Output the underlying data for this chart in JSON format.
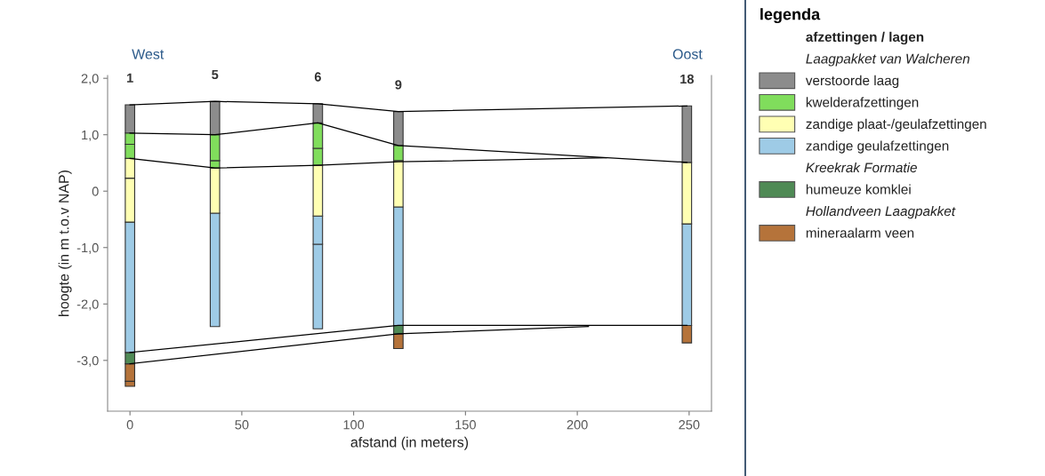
{
  "chart_data": {
    "type": "bar",
    "xlabel": "afstand (in meters)",
    "ylabel": "hoogte (in m t.o.v NAP)",
    "legend_title": "legenda",
    "x": [
      0,
      38,
      84,
      120,
      249
    ],
    "series": [
      {
        "name": "mineraalarm veen",
        "color": "#b5733a",
        "base": [
          -3.46,
          null,
          null,
          -2.79,
          -2.69
        ],
        "values": [
          0.09,
          null,
          null,
          0.26,
          0.31
        ]
      },
      {
        "color": "#b5733a",
        "base": [
          -3.37,
          null,
          null,
          null,
          null
        ],
        "values": [
          0.31,
          null,
          null,
          null,
          null
        ]
      },
      {
        "name": "humeuze komklei",
        "color": "#4f8a55",
        "base": [
          -3.06,
          null,
          null,
          -2.53,
          null
        ],
        "values": [
          0.2,
          null,
          null,
          0.15,
          null
        ]
      },
      {
        "color": "#9ecbe6",
        "base": [
          null,
          null,
          -2.44,
          null,
          null
        ],
        "values": [
          null,
          null,
          1.5,
          null,
          null
        ]
      },
      {
        "name": "zandige geulafzettingen",
        "color": "#9ecbe6",
        "base": [
          -2.86,
          -2.4,
          -0.94,
          -2.38,
          -2.38
        ],
        "values": [
          2.31,
          2.01,
          0.5,
          2.1,
          1.8
        ]
      },
      {
        "color": "#ffffb3",
        "base": [
          -0.55,
          null,
          null,
          null,
          null
        ],
        "values": [
          0.78,
          null,
          null,
          null,
          null
        ]
      },
      {
        "name": "zandige plaat-/geulafzettingen",
        "color": "#ffffb3",
        "base": [
          0.23,
          -0.39,
          -0.44,
          -0.28,
          -0.58
        ],
        "values": [
          0.35,
          0.8,
          0.9,
          0.82,
          1.09
        ]
      },
      {
        "color": "#80dd5c",
        "base": [
          0.58,
          0.41,
          0.46,
          null,
          null
        ],
        "values": [
          0.25,
          0.13,
          0.3,
          null,
          null
        ]
      },
      {
        "name": "kwelderafzettingen",
        "color": "#80dd5c",
        "base": [
          0.83,
          0.54,
          0.76,
          0.54,
          null
        ],
        "values": [
          0.2,
          0.46,
          0.45,
          0.27,
          null
        ]
      },
      {
        "name": "verstoorde laag",
        "color": "#8c8c8c",
        "base": [
          1.03,
          1.0,
          1.21,
          0.81,
          0.51
        ],
        "values": [
          0.5,
          0.59,
          0.34,
          0.6,
          1.0
        ]
      },
      {
        "type": "line",
        "color": "#000000",
        "x": [
          0,
          38,
          84,
          120,
          249
        ],
        "values": [
          1.53,
          1.59,
          1.55,
          1.41,
          1.51
        ]
      },
      {
        "type": "line",
        "color": "#000000",
        "x": [
          0,
          38,
          84,
          120,
          249
        ],
        "values": [
          1.03,
          1.0,
          1.21,
          0.81,
          0.51
        ]
      },
      {
        "type": "line",
        "color": "#000000",
        "x": [
          0,
          38,
          84,
          120,
          213
        ],
        "values": [
          0.58,
          0.41,
          0.46,
          0.52,
          0.59
        ]
      },
      {
        "type": "line",
        "color": "#000000",
        "x": [
          0,
          120,
          249
        ],
        "values": [
          -2.86,
          -2.38,
          -2.38
        ]
      },
      {
        "type": "line",
        "color": "#000000",
        "x": [
          0,
          120,
          205
        ],
        "values": [
          -3.06,
          -2.53,
          -2.4
        ]
      }
    ],
    "xlim": [
      -10,
      260
    ],
    "xticks": [
      0,
      50,
      100,
      150,
      200,
      250
    ],
    "ylim": [
      -3.9,
      2.05
    ],
    "yticks": [
      {
        "value": 2,
        "label": "2,0"
      },
      {
        "value": 1,
        "label": "1,0"
      },
      0,
      {
        "value": -1,
        "label": "-1,0"
      },
      {
        "value": -2,
        "label": "-2,0"
      },
      {
        "value": -3,
        "label": "-3,0"
      }
    ],
    "legend": "right",
    "annotations": [
      "West",
      "Oost",
      "afzettingen / lagen",
      "Laagpakket van Walcheren",
      "Kreekrak Formatie",
      "Hollandveen Laagpakket",
      "1",
      "5",
      "6",
      "9",
      "18"
    ]
  }
}
